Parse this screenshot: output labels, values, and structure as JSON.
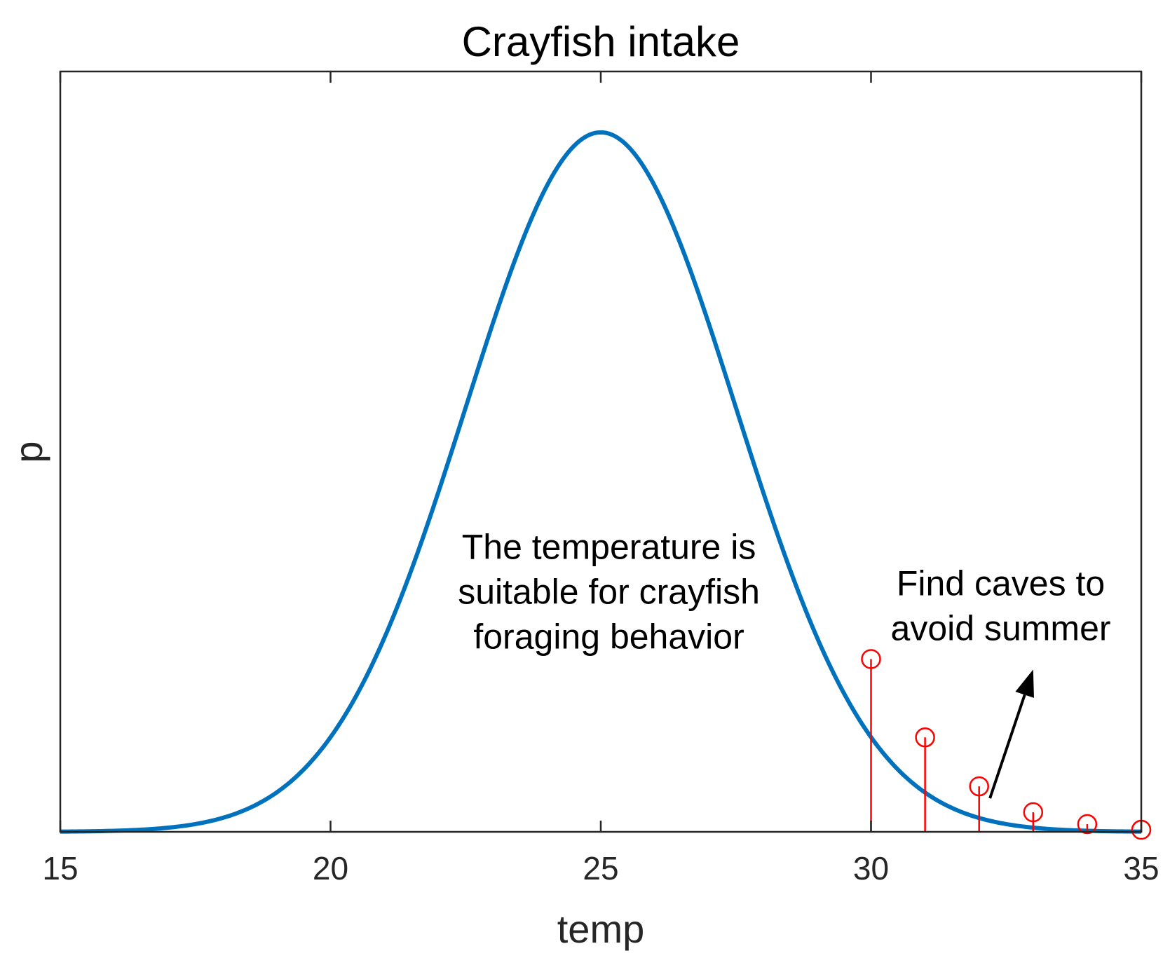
{
  "chart_data": {
    "type": "line",
    "title": "Crayfish intake",
    "xlabel": "temp",
    "ylabel": "p",
    "xlim": [
      15,
      35
    ],
    "ylim": [
      0,
      1.087
    ],
    "xticks": [
      "15",
      "20",
      "25",
      "30",
      "35"
    ],
    "grid": false,
    "series": [
      {
        "type": "line",
        "color": "#0072BD",
        "description_curve": "gaussian",
        "mu": 25,
        "sigma": 2.5,
        "peak": 1.0
      },
      {
        "type": "stem",
        "color": "#FF0000",
        "x": [
          30,
          31,
          32,
          33,
          34,
          35
        ],
        "y": [
          0.247,
          0.135,
          0.065,
          0.028,
          0.011,
          0.003
        ]
      }
    ],
    "annotations": [
      {
        "id": "suitable",
        "lines": [
          "The temperature is",
          "suitable for crayfish",
          "foraging behavior"
        ]
      },
      {
        "id": "caves",
        "lines": [
          "Find caves to",
          "avoid summer"
        ]
      }
    ],
    "arrow": {
      "color": "#000000",
      "from": [
        32.2,
        0.048
      ],
      "to": [
        33.0,
        0.232
      ]
    }
  }
}
